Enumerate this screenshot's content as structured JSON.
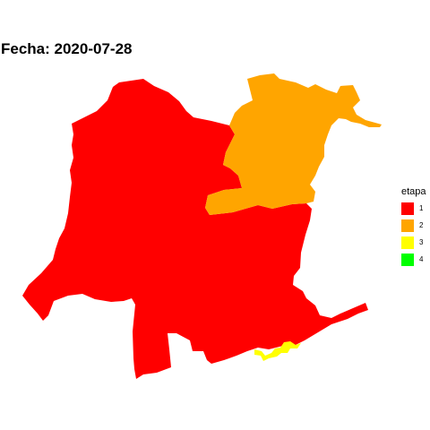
{
  "title": "Fecha: 2020-07-28",
  "legend": {
    "title": "etapa",
    "items": [
      {
        "label": "1",
        "color": "#FF0000"
      },
      {
        "label": "2",
        "color": "#FFA500"
      },
      {
        "label": "3",
        "color": "#FFFF00"
      },
      {
        "label": "4",
        "color": "#00FF00"
      }
    ]
  },
  "regions": [
    {
      "name": "region-etapa-1",
      "etapa": "1"
    },
    {
      "name": "region-etapa-2",
      "etapa": "2"
    },
    {
      "name": "region-etapa-3",
      "etapa": "3"
    }
  ]
}
